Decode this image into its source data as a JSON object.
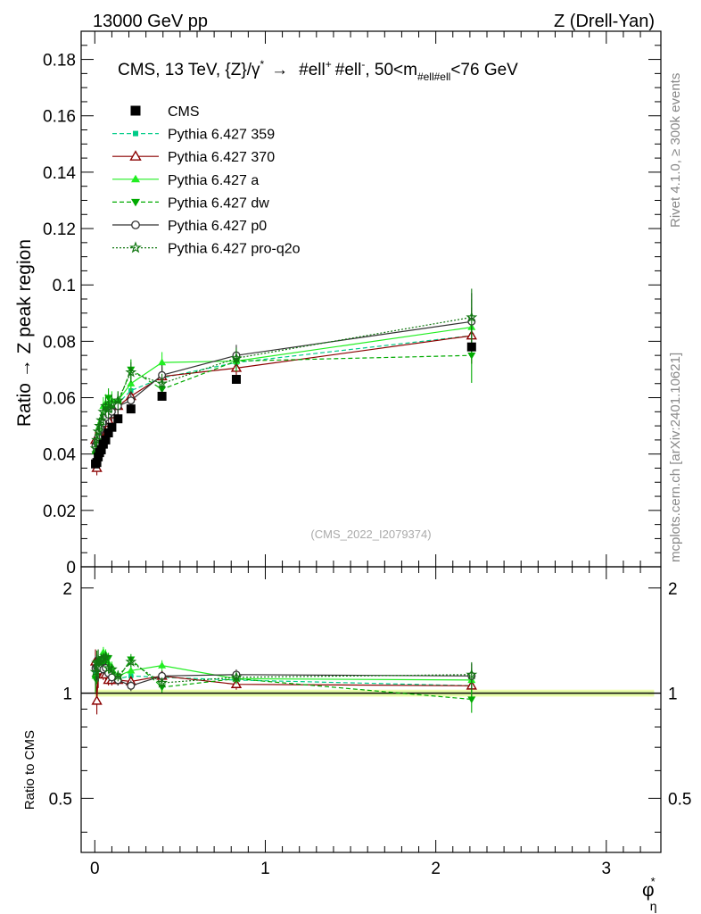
{
  "header": {
    "energy": "13000 GeV pp",
    "process": "Z (Drell-Yan)",
    "title_main": "CMS, 13 TeV, {Z}/γ",
    "title_star": "*",
    "title_arrow": "→",
    "title_ell1": "#ell",
    "title_plus": "+",
    "title_ell2": "#ell",
    "title_minus": "-",
    "title_range_pre": ", 50<m",
    "title_sub": "#ell#ell",
    "title_range_post": "<76 GeV"
  },
  "side_labels": {
    "rivet": "Rivet 4.1.0, ≥ 300k events",
    "mcplots": "mcplots.cern.ch [arXiv:2401.10621]"
  },
  "watermark": "(CMS_2022_I2079374)",
  "chart_data": [
    {
      "type": "scatter",
      "panel": "main",
      "ylabel": "Ratio → Z peak region",
      "xlim": [
        -0.08,
        3.32
      ],
      "ylim": [
        0,
        0.19
      ],
      "yticks": [
        0,
        0.02,
        0.04,
        0.06,
        0.08,
        0.1,
        0.12,
        0.14,
        0.16,
        0.18
      ],
      "ytick_labels": [
        "0",
        "0.02",
        "0.04",
        "0.06",
        "0.08",
        "0.1",
        "0.12",
        "0.14",
        "0.16",
        "0.18"
      ],
      "legend_position": "top-left",
      "x": [
        0.004,
        0.012,
        0.02,
        0.028,
        0.038,
        0.05,
        0.064,
        0.08,
        0.1,
        0.136,
        0.212,
        0.394,
        0.83,
        2.21
      ],
      "series": [
        {
          "name": "CMS",
          "color": "#000000",
          "marker": "square",
          "line": "none",
          "values": [
            0.0365,
            0.037,
            0.039,
            0.0405,
            0.0415,
            0.0435,
            0.045,
            0.0475,
            0.0495,
            0.0525,
            0.056,
            0.0605,
            0.0665,
            0.078
          ]
        },
        {
          "name": "Pythia 6.427 359",
          "color": "#00cc88",
          "marker": "small-square",
          "line": "dashed",
          "values": [
            0.042,
            0.043,
            0.046,
            0.048,
            0.05,
            0.052,
            0.053,
            0.054,
            0.056,
            0.058,
            0.0625,
            0.067,
            0.0725,
            0.082
          ]
        },
        {
          "name": "Pythia 6.427 370",
          "color": "#8b0000",
          "marker": "open-triangle",
          "line": "solid",
          "values": [
            0.045,
            0.035,
            0.044,
            0.047,
            0.048,
            0.049,
            0.051,
            0.052,
            0.054,
            0.057,
            0.0605,
            0.0675,
            0.0705,
            0.082
          ]
        },
        {
          "name": "Pythia 6.427 a",
          "color": "#22ee22",
          "marker": "triangle",
          "line": "solid",
          "values": [
            0.041,
            0.045,
            0.046,
            0.05,
            0.052,
            0.057,
            0.058,
            0.058,
            0.059,
            0.059,
            0.065,
            0.0725,
            0.073,
            0.085
          ]
        },
        {
          "name": "Pythia 6.427 dw",
          "color": "#00aa00",
          "marker": "inverted-triangle",
          "line": "dashed",
          "values": [
            0.04,
            0.043,
            0.046,
            0.048,
            0.05,
            0.053,
            0.056,
            0.06,
            0.056,
            0.058,
            0.07,
            0.063,
            0.073,
            0.075
          ]
        },
        {
          "name": "Pythia 6.427 p0",
          "color": "#333333",
          "marker": "open-circle",
          "line": "solid",
          "values": [
            0.043,
            0.044,
            0.046,
            0.048,
            0.049,
            0.051,
            0.053,
            0.054,
            0.055,
            0.057,
            0.059,
            0.068,
            0.075,
            0.087
          ]
        },
        {
          "name": "Pythia 6.427 pro-q2o",
          "color": "#117711",
          "marker": "star",
          "line": "dotted",
          "values": [
            0.042,
            0.045,
            0.048,
            0.05,
            0.052,
            0.055,
            0.057,
            0.056,
            0.058,
            0.059,
            0.069,
            0.065,
            0.074,
            0.0885
          ]
        }
      ]
    },
    {
      "type": "scatter",
      "panel": "ratio",
      "ylabel": "Ratio to CMS",
      "xlabel": "φ",
      "xlabel_sup": "*",
      "xlabel_sub": "η",
      "xlim": [
        -0.08,
        3.32
      ],
      "ylim": [
        0.35,
        2.3
      ],
      "yscale": "log",
      "yticks": [
        0.5,
        1,
        2
      ],
      "ytick_labels": [
        "0.5",
        "1",
        "2"
      ],
      "xticks": [
        0,
        1,
        2,
        3
      ],
      "xtick_labels": [
        "0",
        "1",
        "2",
        "3"
      ],
      "reference_line": 1,
      "band": {
        "lower": 0.985,
        "upper": 1.015,
        "colors": [
          "#f0ffb0",
          "#ddf5a0"
        ]
      },
      "x": [
        0.004,
        0.012,
        0.02,
        0.028,
        0.038,
        0.05,
        0.064,
        0.08,
        0.1,
        0.136,
        0.212,
        0.394,
        0.83,
        2.21
      ],
      "series": [
        {
          "name": "Pythia 6.427 359",
          "values": [
            1.15,
            1.16,
            1.18,
            1.19,
            1.2,
            1.2,
            1.18,
            1.14,
            1.13,
            1.1,
            1.12,
            1.11,
            1.09,
            1.05
          ]
        },
        {
          "name": "Pythia 6.427 370",
          "values": [
            1.23,
            0.95,
            1.13,
            1.16,
            1.16,
            1.13,
            1.13,
            1.09,
            1.09,
            1.09,
            1.08,
            1.12,
            1.06,
            1.05
          ]
        },
        {
          "name": "Pythia 6.427 a",
          "values": [
            1.12,
            1.22,
            1.18,
            1.23,
            1.25,
            1.31,
            1.29,
            1.22,
            1.19,
            1.12,
            1.16,
            1.2,
            1.1,
            1.09
          ]
        },
        {
          "name": "Pythia 6.427 dw",
          "values": [
            1.1,
            1.16,
            1.18,
            1.19,
            1.2,
            1.22,
            1.24,
            1.26,
            1.13,
            1.1,
            1.25,
            1.04,
            1.1,
            0.96
          ]
        },
        {
          "name": "Pythia 6.427 p0",
          "values": [
            1.18,
            1.19,
            1.18,
            1.19,
            1.18,
            1.17,
            1.18,
            1.14,
            1.11,
            1.09,
            1.05,
            1.12,
            1.13,
            1.12
          ]
        },
        {
          "name": "Pythia 6.427 pro-q2o",
          "values": [
            1.15,
            1.22,
            1.23,
            1.23,
            1.25,
            1.26,
            1.27,
            1.18,
            1.17,
            1.12,
            1.23,
            1.07,
            1.11,
            1.13
          ]
        }
      ]
    }
  ]
}
